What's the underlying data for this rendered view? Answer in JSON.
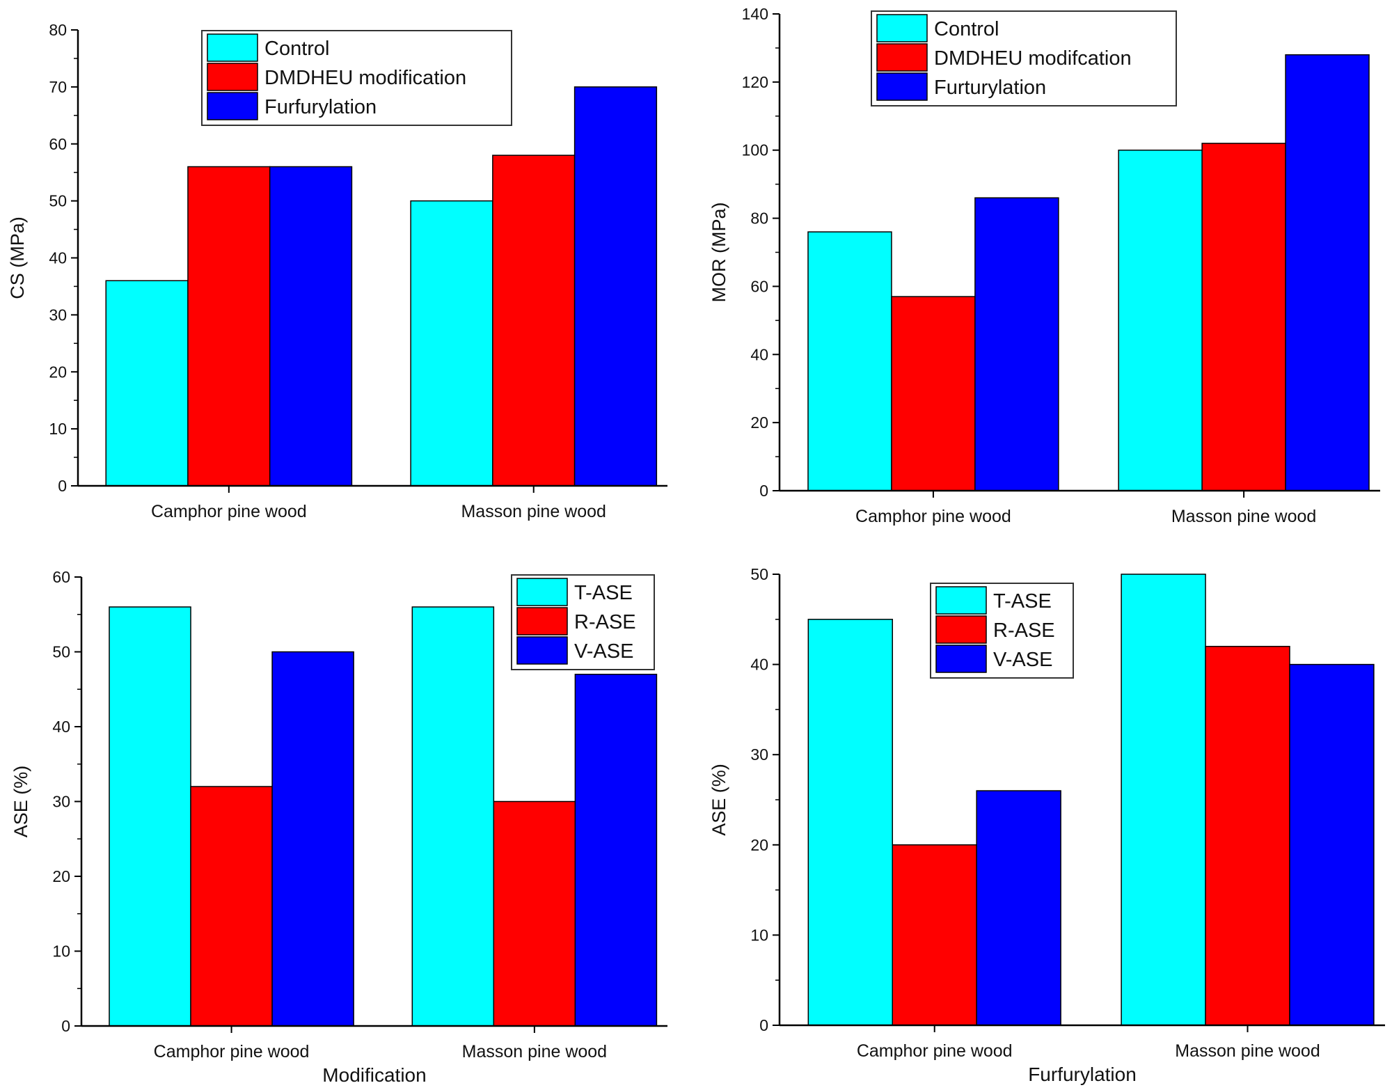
{
  "chart_data": [
    {
      "type": "bar",
      "categories": [
        "Camphor pine wood",
        "Masson pine wood"
      ],
      "series": [
        {
          "name": "Control",
          "values": [
            36,
            50
          ],
          "color": "#00ffff"
        },
        {
          "name": "DMDHEU modification",
          "values": [
            56,
            58
          ],
          "color": "#ff0000"
        },
        {
          "name": "Furfurylation",
          "values": [
            56,
            70
          ],
          "color": "#0000ff"
        }
      ],
      "title": "",
      "xlabel": "",
      "ylabel": "CS (MPa)",
      "ylim": [
        0,
        80
      ],
      "yticks": [
        0,
        10,
        20,
        30,
        40,
        50,
        60,
        70,
        80
      ],
      "legend": "top-center",
      "grid": false
    },
    {
      "type": "bar",
      "categories": [
        "Camphor pine wood",
        "Masson pine wood"
      ],
      "series": [
        {
          "name": "Control",
          "values": [
            76,
            100
          ],
          "color": "#00ffff"
        },
        {
          "name": "DMDHEU modifcation",
          "values": [
            57,
            102
          ],
          "color": "#ff0000"
        },
        {
          "name": "Furturylation",
          "values": [
            86,
            128
          ],
          "color": "#0000ff"
        }
      ],
      "title": "",
      "xlabel": "",
      "ylabel": "MOR (MPa)",
      "ylim": [
        0,
        140
      ],
      "yticks": [
        0,
        20,
        40,
        60,
        80,
        100,
        120,
        140
      ],
      "legend": "top-left",
      "grid": false
    },
    {
      "type": "bar",
      "categories": [
        "Camphor pine wood",
        "Masson pine wood"
      ],
      "series": [
        {
          "name": "T-ASE",
          "values": [
            56,
            56
          ],
          "color": "#00ffff"
        },
        {
          "name": "R-ASE",
          "values": [
            32,
            30
          ],
          "color": "#ff0000"
        },
        {
          "name": "V-ASE",
          "values": [
            50,
            47
          ],
          "color": "#0000ff"
        }
      ],
      "title": "",
      "xlabel": "Modification",
      "ylabel": "ASE (%)",
      "ylim": [
        0,
        60
      ],
      "yticks": [
        0,
        10,
        20,
        30,
        40,
        50,
        60
      ],
      "legend": "top-right",
      "grid": false
    },
    {
      "type": "bar",
      "categories": [
        "Camphor pine wood",
        "Masson pine wood"
      ],
      "series": [
        {
          "name": "T-ASE",
          "values": [
            45,
            50
          ],
          "color": "#00ffff"
        },
        {
          "name": "R-ASE",
          "values": [
            20,
            42
          ],
          "color": "#ff0000"
        },
        {
          "name": "V-ASE",
          "values": [
            26,
            40
          ],
          "color": "#0000ff"
        }
      ],
      "title": "",
      "xlabel": "Furfurylation",
      "ylabel": "ASE (%)",
      "ylim": [
        0,
        50
      ],
      "yticks": [
        0,
        10,
        20,
        30,
        40,
        50
      ],
      "legend": "top-left",
      "grid": false
    }
  ]
}
